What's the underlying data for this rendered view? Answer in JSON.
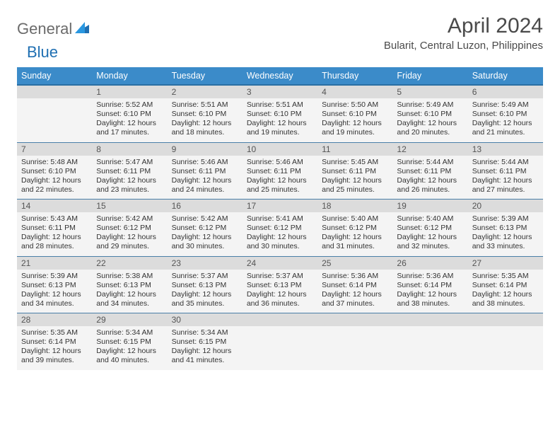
{
  "logo": {
    "text1": "General",
    "text2": "Blue",
    "color_general": "#6b6b6b",
    "color_blue": "#1f6fb2",
    "mark_color": "#1f6fb2"
  },
  "title": "April 2024",
  "location": "Bularit, Central Luzon, Philippines",
  "colors": {
    "header_bg": "#3b8bc9",
    "header_border": "#2a6fa3",
    "row_border": "#4a7fa8",
    "daynum_bg": "#dcdcdc",
    "detail_bg": "#f4f4f4",
    "text": "#333333"
  },
  "weekdays": [
    "Sunday",
    "Monday",
    "Tuesday",
    "Wednesday",
    "Thursday",
    "Friday",
    "Saturday"
  ],
  "weeks": [
    [
      {
        "day": "",
        "sunrise": "",
        "sunset": "",
        "daylight": ""
      },
      {
        "day": "1",
        "sunrise": "5:52 AM",
        "sunset": "6:10 PM",
        "daylight": "12 hours and 17 minutes."
      },
      {
        "day": "2",
        "sunrise": "5:51 AM",
        "sunset": "6:10 PM",
        "daylight": "12 hours and 18 minutes."
      },
      {
        "day": "3",
        "sunrise": "5:51 AM",
        "sunset": "6:10 PM",
        "daylight": "12 hours and 19 minutes."
      },
      {
        "day": "4",
        "sunrise": "5:50 AM",
        "sunset": "6:10 PM",
        "daylight": "12 hours and 19 minutes."
      },
      {
        "day": "5",
        "sunrise": "5:49 AM",
        "sunset": "6:10 PM",
        "daylight": "12 hours and 20 minutes."
      },
      {
        "day": "6",
        "sunrise": "5:49 AM",
        "sunset": "6:10 PM",
        "daylight": "12 hours and 21 minutes."
      }
    ],
    [
      {
        "day": "7",
        "sunrise": "5:48 AM",
        "sunset": "6:10 PM",
        "daylight": "12 hours and 22 minutes."
      },
      {
        "day": "8",
        "sunrise": "5:47 AM",
        "sunset": "6:11 PM",
        "daylight": "12 hours and 23 minutes."
      },
      {
        "day": "9",
        "sunrise": "5:46 AM",
        "sunset": "6:11 PM",
        "daylight": "12 hours and 24 minutes."
      },
      {
        "day": "10",
        "sunrise": "5:46 AM",
        "sunset": "6:11 PM",
        "daylight": "12 hours and 25 minutes."
      },
      {
        "day": "11",
        "sunrise": "5:45 AM",
        "sunset": "6:11 PM",
        "daylight": "12 hours and 25 minutes."
      },
      {
        "day": "12",
        "sunrise": "5:44 AM",
        "sunset": "6:11 PM",
        "daylight": "12 hours and 26 minutes."
      },
      {
        "day": "13",
        "sunrise": "5:44 AM",
        "sunset": "6:11 PM",
        "daylight": "12 hours and 27 minutes."
      }
    ],
    [
      {
        "day": "14",
        "sunrise": "5:43 AM",
        "sunset": "6:11 PM",
        "daylight": "12 hours and 28 minutes."
      },
      {
        "day": "15",
        "sunrise": "5:42 AM",
        "sunset": "6:12 PM",
        "daylight": "12 hours and 29 minutes."
      },
      {
        "day": "16",
        "sunrise": "5:42 AM",
        "sunset": "6:12 PM",
        "daylight": "12 hours and 30 minutes."
      },
      {
        "day": "17",
        "sunrise": "5:41 AM",
        "sunset": "6:12 PM",
        "daylight": "12 hours and 30 minutes."
      },
      {
        "day": "18",
        "sunrise": "5:40 AM",
        "sunset": "6:12 PM",
        "daylight": "12 hours and 31 minutes."
      },
      {
        "day": "19",
        "sunrise": "5:40 AM",
        "sunset": "6:12 PM",
        "daylight": "12 hours and 32 minutes."
      },
      {
        "day": "20",
        "sunrise": "5:39 AM",
        "sunset": "6:13 PM",
        "daylight": "12 hours and 33 minutes."
      }
    ],
    [
      {
        "day": "21",
        "sunrise": "5:39 AM",
        "sunset": "6:13 PM",
        "daylight": "12 hours and 34 minutes."
      },
      {
        "day": "22",
        "sunrise": "5:38 AM",
        "sunset": "6:13 PM",
        "daylight": "12 hours and 34 minutes."
      },
      {
        "day": "23",
        "sunrise": "5:37 AM",
        "sunset": "6:13 PM",
        "daylight": "12 hours and 35 minutes."
      },
      {
        "day": "24",
        "sunrise": "5:37 AM",
        "sunset": "6:13 PM",
        "daylight": "12 hours and 36 minutes."
      },
      {
        "day": "25",
        "sunrise": "5:36 AM",
        "sunset": "6:14 PM",
        "daylight": "12 hours and 37 minutes."
      },
      {
        "day": "26",
        "sunrise": "5:36 AM",
        "sunset": "6:14 PM",
        "daylight": "12 hours and 38 minutes."
      },
      {
        "day": "27",
        "sunrise": "5:35 AM",
        "sunset": "6:14 PM",
        "daylight": "12 hours and 38 minutes."
      }
    ],
    [
      {
        "day": "28",
        "sunrise": "5:35 AM",
        "sunset": "6:14 PM",
        "daylight": "12 hours and 39 minutes."
      },
      {
        "day": "29",
        "sunrise": "5:34 AM",
        "sunset": "6:15 PM",
        "daylight": "12 hours and 40 minutes."
      },
      {
        "day": "30",
        "sunrise": "5:34 AM",
        "sunset": "6:15 PM",
        "daylight": "12 hours and 41 minutes."
      },
      {
        "day": "",
        "sunrise": "",
        "sunset": "",
        "daylight": ""
      },
      {
        "day": "",
        "sunrise": "",
        "sunset": "",
        "daylight": ""
      },
      {
        "day": "",
        "sunrise": "",
        "sunset": "",
        "daylight": ""
      },
      {
        "day": "",
        "sunrise": "",
        "sunset": "",
        "daylight": ""
      }
    ]
  ],
  "label_sunrise": "Sunrise:",
  "label_sunset": "Sunset:",
  "label_daylight": "Daylight:"
}
